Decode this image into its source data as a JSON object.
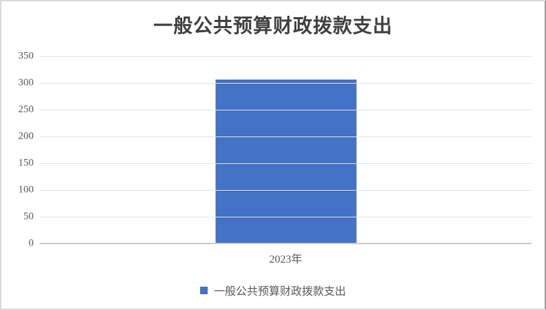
{
  "chart_data": {
    "type": "bar",
    "title": "一般公共预算财政拨款支出",
    "categories": [
      "2023年"
    ],
    "series": [
      {
        "name": "一般公共预算财政拨款支出",
        "values": [
          307
        ]
      }
    ],
    "xlabel": "",
    "ylabel": "",
    "ylim": [
      0,
      350
    ],
    "yticks": [
      0,
      50,
      100,
      150,
      200,
      250,
      300,
      350
    ],
    "grid": true,
    "legend": {
      "position": "bottom",
      "entries": [
        "一般公共预算财政拨款支出"
      ]
    },
    "colors": {
      "bar": "#4472c4",
      "gridline": "#e2e2e2",
      "axis_line": "#c9c9c9",
      "tick_label": "#595959",
      "title": "#404040",
      "legend_text": "#595959"
    }
  }
}
